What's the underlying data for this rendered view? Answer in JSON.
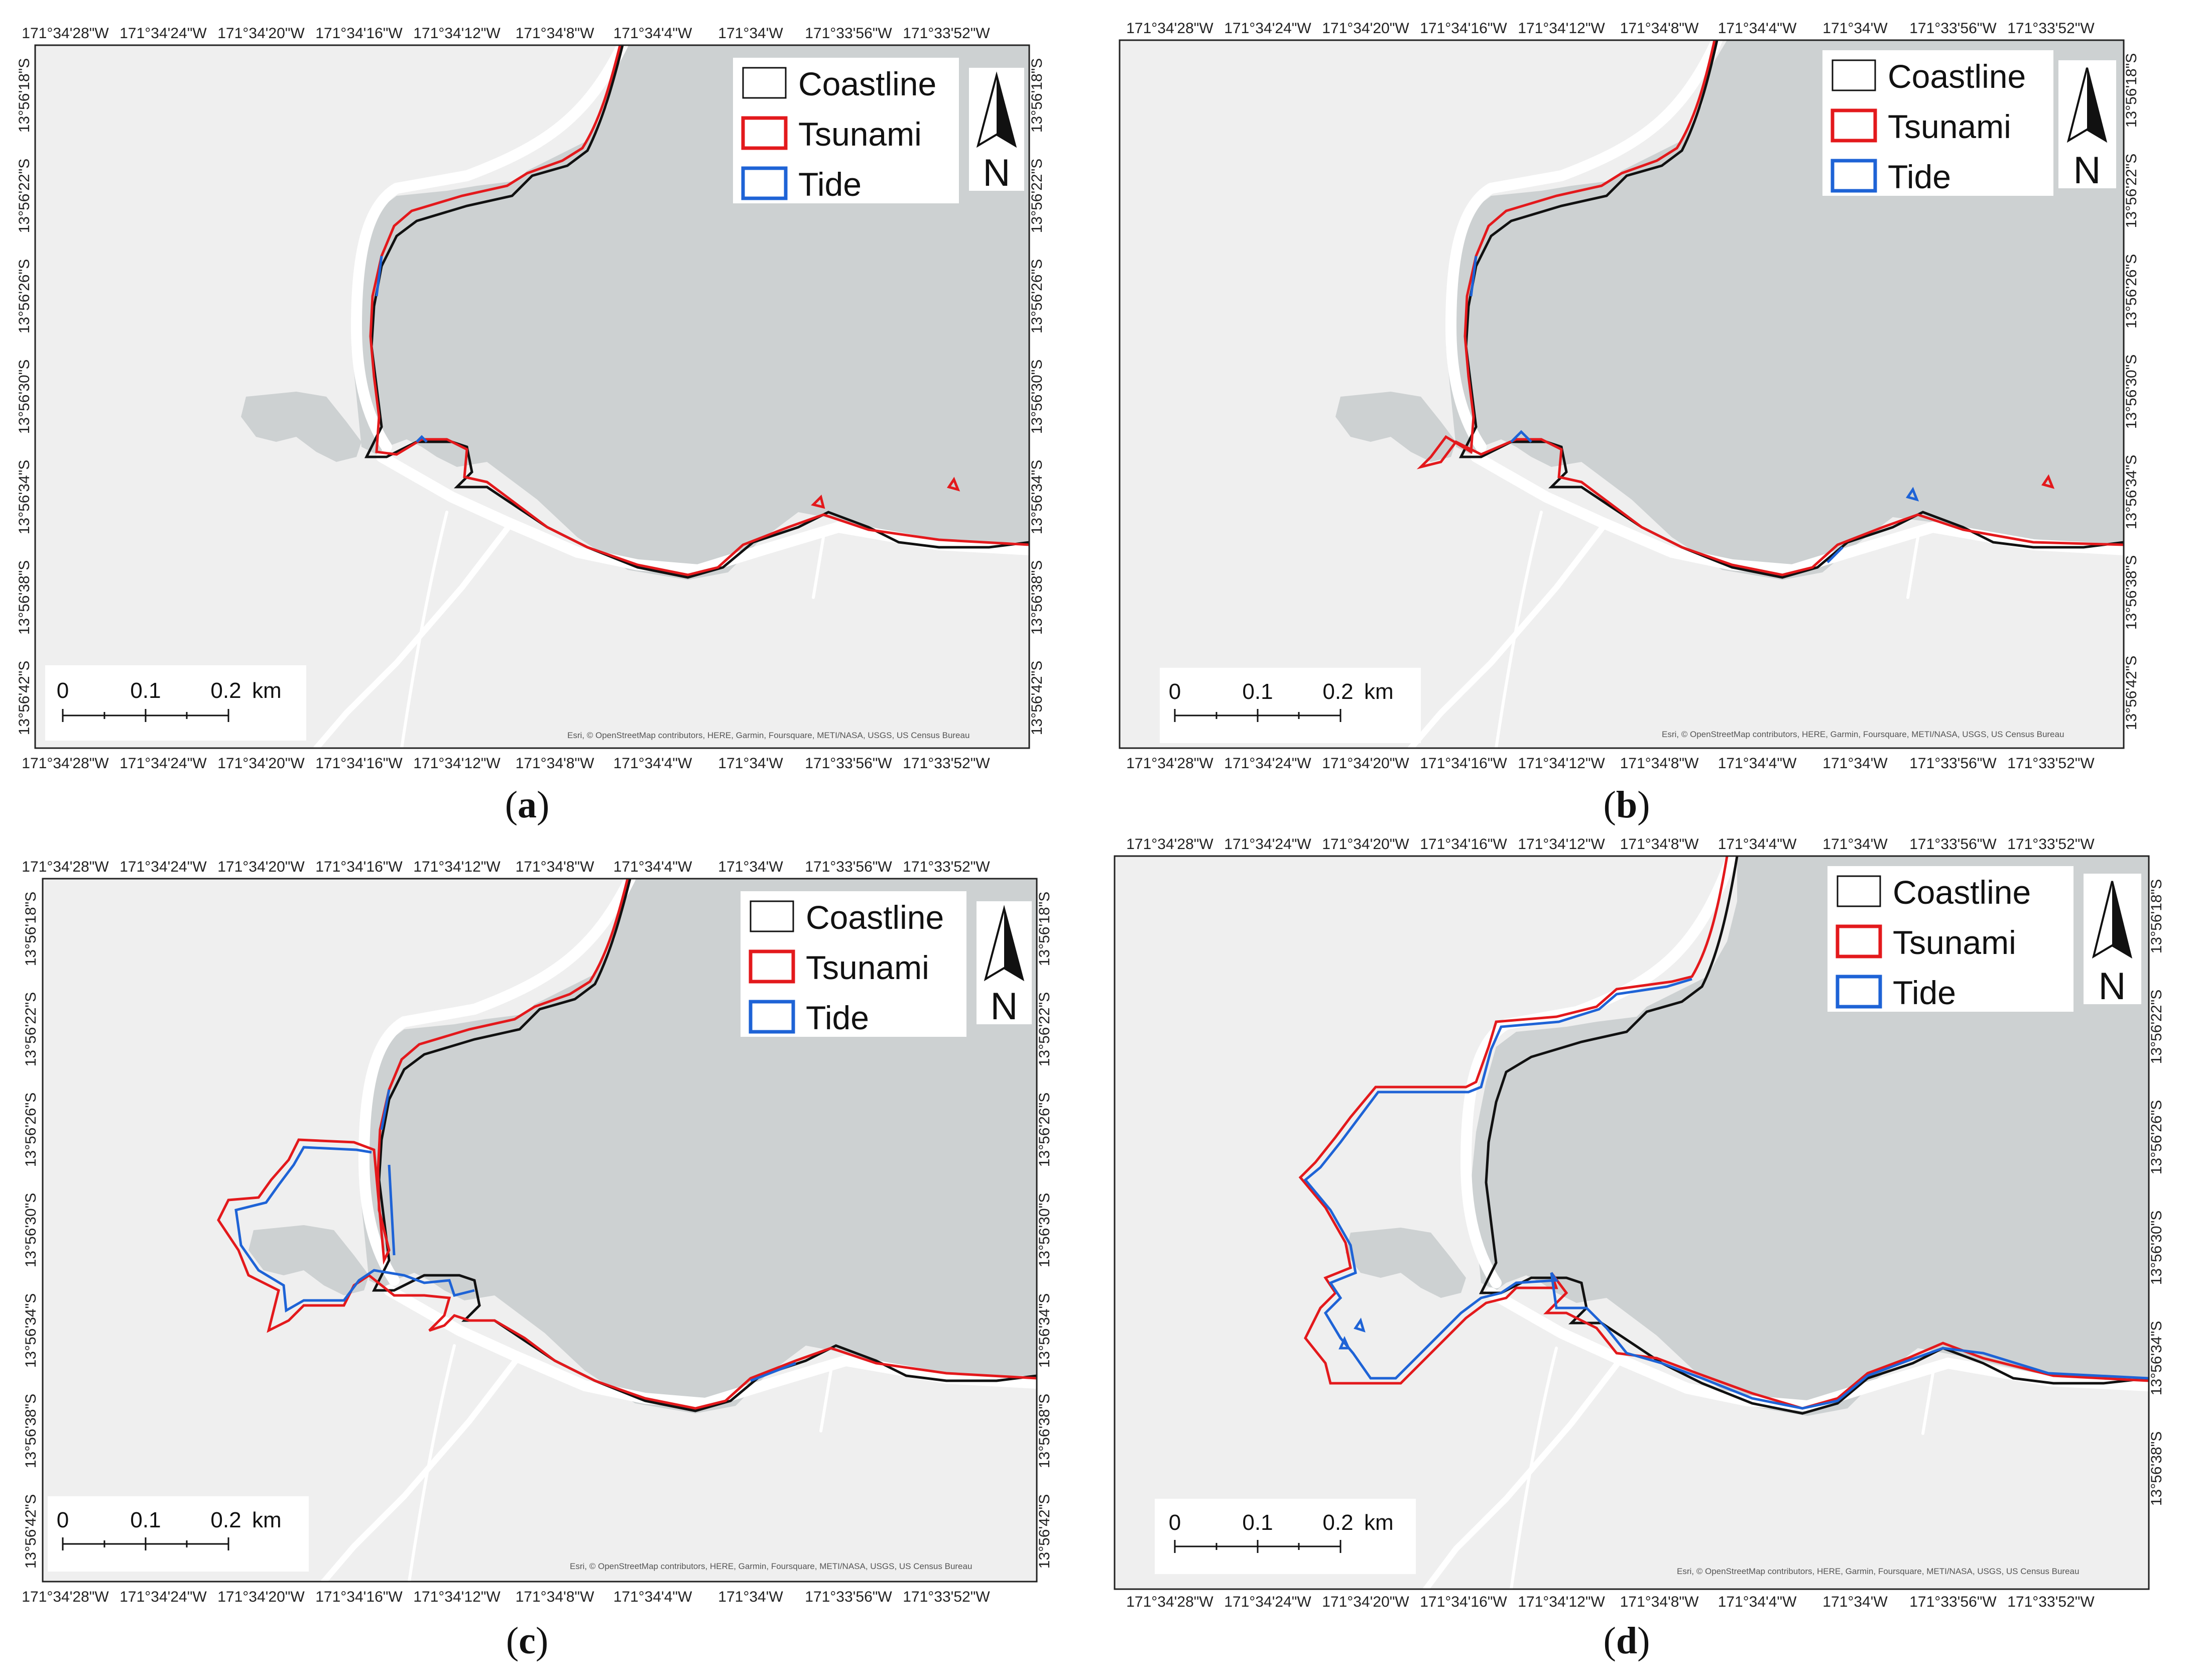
{
  "lon_labels": [
    "171°34'28\"W",
    "171°34'24\"W",
    "171°34'20\"W",
    "171°34'16\"W",
    "171°34'12\"W",
    "171°34'8\"W",
    "171°34'4\"W",
    "171°34'W",
    "171°33'56\"W",
    "171°33'52\"W"
  ],
  "lat_labels": [
    "13°56'18\"S",
    "13°56'22\"S",
    "13°56'26\"S",
    "13°56'30\"S",
    "13°56'34\"S",
    "13°56'38\"S",
    "13°56'42\"S"
  ],
  "legend": [
    {
      "label": "Coastline",
      "color": "#111111"
    },
    {
      "label": "Tsunami",
      "color": "#e3191c"
    },
    {
      "label": "Tide",
      "color": "#1e63d6"
    }
  ],
  "north_arrow_label": "N",
  "scale_bar": {
    "labels": [
      "0",
      "0.1",
      "0.2"
    ],
    "unit": "km"
  },
  "attribution": "Esri, © OpenStreetMap contributors, HERE, Garmin, Foursquare, METI/NASA, USGS, US Census Bureau",
  "colors": {
    "ocean": "#cdd1d2",
    "land": "#efefef",
    "road": "#ffffff",
    "coastline": "#111111",
    "tsunami": "#e3191c",
    "tide": "#1e63d6"
  },
  "panels": [
    {
      "id": "a",
      "caption_letter": "a"
    },
    {
      "id": "b",
      "caption_letter": "b"
    },
    {
      "id": "c",
      "caption_letter": "c"
    },
    {
      "id": "d",
      "caption_letter": "d"
    }
  ]
}
